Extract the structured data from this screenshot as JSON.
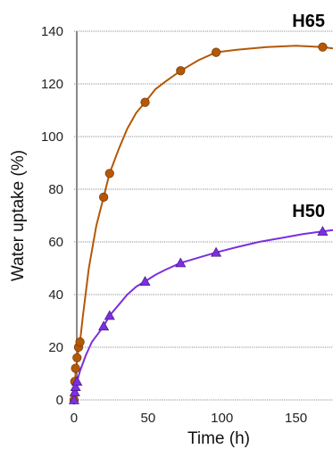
{
  "chart_data": {
    "type": "line",
    "xlabel": "Time (h)",
    "ylabel": "Water uptake (%)",
    "xlim": [
      -3,
      175
    ],
    "ylim": [
      0,
      140
    ],
    "x_ticks": [
      0,
      50,
      100,
      150
    ],
    "y_ticks": [
      0,
      20,
      40,
      60,
      80,
      100,
      120,
      140
    ],
    "grid": "horizontal-dotted",
    "series": [
      {
        "name": "H65",
        "color": "#B35806",
        "marker": "circle",
        "x": [
          0,
          0.5,
          1,
          2,
          3,
          4,
          20,
          24,
          48,
          72,
          96,
          168
        ],
        "y": [
          0,
          7,
          12,
          16,
          20,
          22,
          77,
          86,
          113,
          125,
          132,
          134
        ],
        "curve_x": [
          0,
          1,
          2,
          3,
          4,
          6,
          10,
          15,
          20,
          24,
          30,
          36,
          42,
          48,
          55,
          62,
          72,
          84,
          96,
          110,
          130,
          150,
          168,
          175
        ],
        "curve_y": [
          0,
          10,
          15,
          19,
          22,
          32,
          50,
          66,
          77,
          86,
          95,
          103,
          109,
          113,
          118,
          121,
          125,
          129,
          132,
          133,
          134,
          134.5,
          134,
          133.5
        ]
      },
      {
        "name": "H50",
        "color": "#7B2FE0",
        "marker": "triangle",
        "x": [
          0,
          0.5,
          1,
          2,
          20,
          24,
          48,
          72,
          96,
          168
        ],
        "y": [
          0,
          3,
          5,
          7,
          28,
          32,
          45,
          52,
          56,
          64
        ],
        "curve_x": [
          0,
          1,
          2,
          4,
          8,
          12,
          16,
          20,
          24,
          30,
          36,
          42,
          48,
          55,
          62,
          72,
          84,
          96,
          110,
          125,
          140,
          155,
          168,
          175
        ],
        "curve_y": [
          0,
          4,
          7,
          11,
          17,
          22,
          25,
          28,
          32,
          36,
          40,
          43,
          45,
          47.5,
          49.5,
          52,
          54,
          56,
          58,
          60,
          61.5,
          63,
          64,
          64.5
        ]
      }
    ]
  }
}
